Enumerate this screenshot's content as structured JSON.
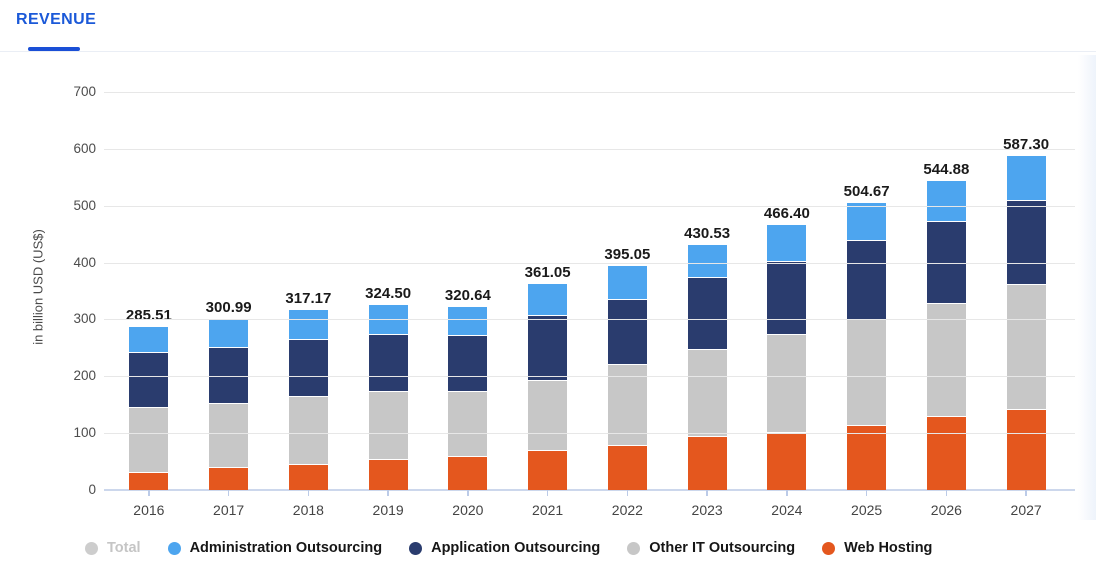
{
  "header": {
    "tab_label": "REVENUE"
  },
  "colors": {
    "accent_blue": "#1b59d8",
    "tab_underline": "#1a4fd6",
    "axis_line": "#ccd7ec",
    "grid_line": "#e7e7e7",
    "label_text": "#1a1a1a",
    "axis_text": "#4a4a4a",
    "legend_disabled_text": "#c5c5c5"
  },
  "chart_data": {
    "type": "bar",
    "stacked": true,
    "title": "",
    "ylabel": "in billion USD (US$)",
    "xlabel": "",
    "categories": [
      "2016",
      "2017",
      "2018",
      "2019",
      "2020",
      "2021",
      "2022",
      "2023",
      "2024",
      "2025",
      "2026",
      "2027"
    ],
    "ylim": [
      0,
      700
    ],
    "yticks": [
      0,
      100,
      200,
      300,
      400,
      500,
      600,
      700
    ],
    "grid": true,
    "legend_position": "bottom",
    "totals": [
      "285.51",
      "300.99",
      "317.17",
      "324.50",
      "320.64",
      "361.05",
      "395.05",
      "430.53",
      "466.40",
      "504.67",
      "544.88",
      "587.30"
    ],
    "series": [
      {
        "name": "Administration Outsourcing",
        "color": "#4da5ef",
        "values": [
          43.5,
          49.6,
          51.1,
          50.5,
          48.4,
          53.9,
          58.7,
          56.9,
          63.0,
          65.7,
          70.0,
          77.5
        ]
      },
      {
        "name": "Application Outsourcing",
        "color": "#2a3c6e",
        "values": [
          96.4,
          98.1,
          99.7,
          101.0,
          99.2,
          113.7,
          114.8,
          126.0,
          127.8,
          138.3,
          145.1,
          147.8
        ]
      },
      {
        "name": "Other IT Outsourcing",
        "color": "#c7c7c7",
        "values": [
          113.6,
          113.0,
          120.2,
          118.8,
          113.6,
          123.6,
          142.8,
          153.0,
          172.8,
          185.7,
          199.4,
          219.9
        ]
      },
      {
        "name": "Web Hosting",
        "color": "#e4571e",
        "values": [
          32.0,
          40.3,
          46.2,
          54.2,
          59.4,
          69.9,
          78.7,
          94.6,
          102.8,
          115.0,
          130.4,
          142.1
        ]
      }
    ],
    "legend": [
      {
        "label": "Total",
        "color": "#cdcdcd",
        "disabled": true
      },
      {
        "label": "Administration Outsourcing",
        "color": "#4da5ef",
        "disabled": false
      },
      {
        "label": "Application Outsourcing",
        "color": "#2a3c6e",
        "disabled": false
      },
      {
        "label": "Other IT Outsourcing",
        "color": "#c7c7c7",
        "disabled": false
      },
      {
        "label": "Web Hosting",
        "color": "#e4571e",
        "disabled": false
      }
    ]
  }
}
